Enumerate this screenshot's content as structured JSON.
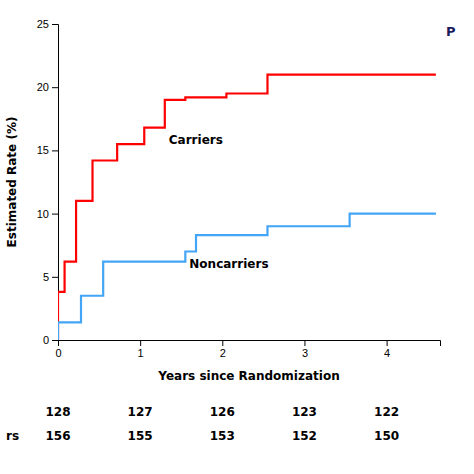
{
  "chart_data": {
    "type": "line",
    "xlabel": "Years since Randomization",
    "ylabel": "Estimated Rate (%)",
    "series": [
      {
        "name": "Carriers",
        "color": "#FF0000",
        "x": [
          0,
          0,
          0.08,
          0.08,
          0.22,
          0.22,
          0.42,
          0.42,
          0.72,
          0.72,
          1.05,
          1.05,
          1.3,
          1.3,
          1.55,
          1.55,
          2.05,
          2.05,
          2.55,
          2.55,
          3.05,
          3.05,
          3.55,
          3.55,
          4.6
        ],
        "values": [
          0,
          3.8,
          3.8,
          6.2,
          6.2,
          11.0,
          11.0,
          14.2,
          14.2,
          15.5,
          15.5,
          16.8,
          16.8,
          19.0,
          19.0,
          19.2,
          19.2,
          19.5,
          19.5,
          21.0,
          21.0,
          21.0,
          21.0,
          21.0,
          21.0
        ]
      },
      {
        "name": "Noncarriers",
        "color": "#42A5F5",
        "x": [
          0,
          0,
          0.28,
          0.28,
          0.55,
          0.55,
          1.55,
          1.55,
          1.68,
          1.68,
          2.55,
          2.55,
          3.55,
          3.55,
          4.6
        ],
        "values": [
          0,
          1.4,
          1.4,
          3.5,
          3.5,
          6.2,
          6.2,
          7.0,
          7.0,
          8.3,
          8.3,
          9.0,
          9.0,
          10.0,
          10.0
        ]
      }
    ],
    "xlim": [
      0,
      4.65
    ],
    "ylim": [
      0,
      25
    ],
    "xticks": [
      0,
      1,
      2,
      3,
      4
    ],
    "yticks": [
      0,
      5,
      10,
      15,
      20,
      25
    ],
    "grid": false,
    "annotations": [
      "P"
    ],
    "at_risk": {
      "x": [
        0,
        1,
        2,
        3,
        4
      ],
      "rows": [
        {
          "values": [
            128,
            127,
            126,
            123,
            122
          ]
        },
        {
          "label": "rs",
          "values": [
            156,
            155,
            153,
            152,
            150
          ]
        }
      ]
    }
  }
}
